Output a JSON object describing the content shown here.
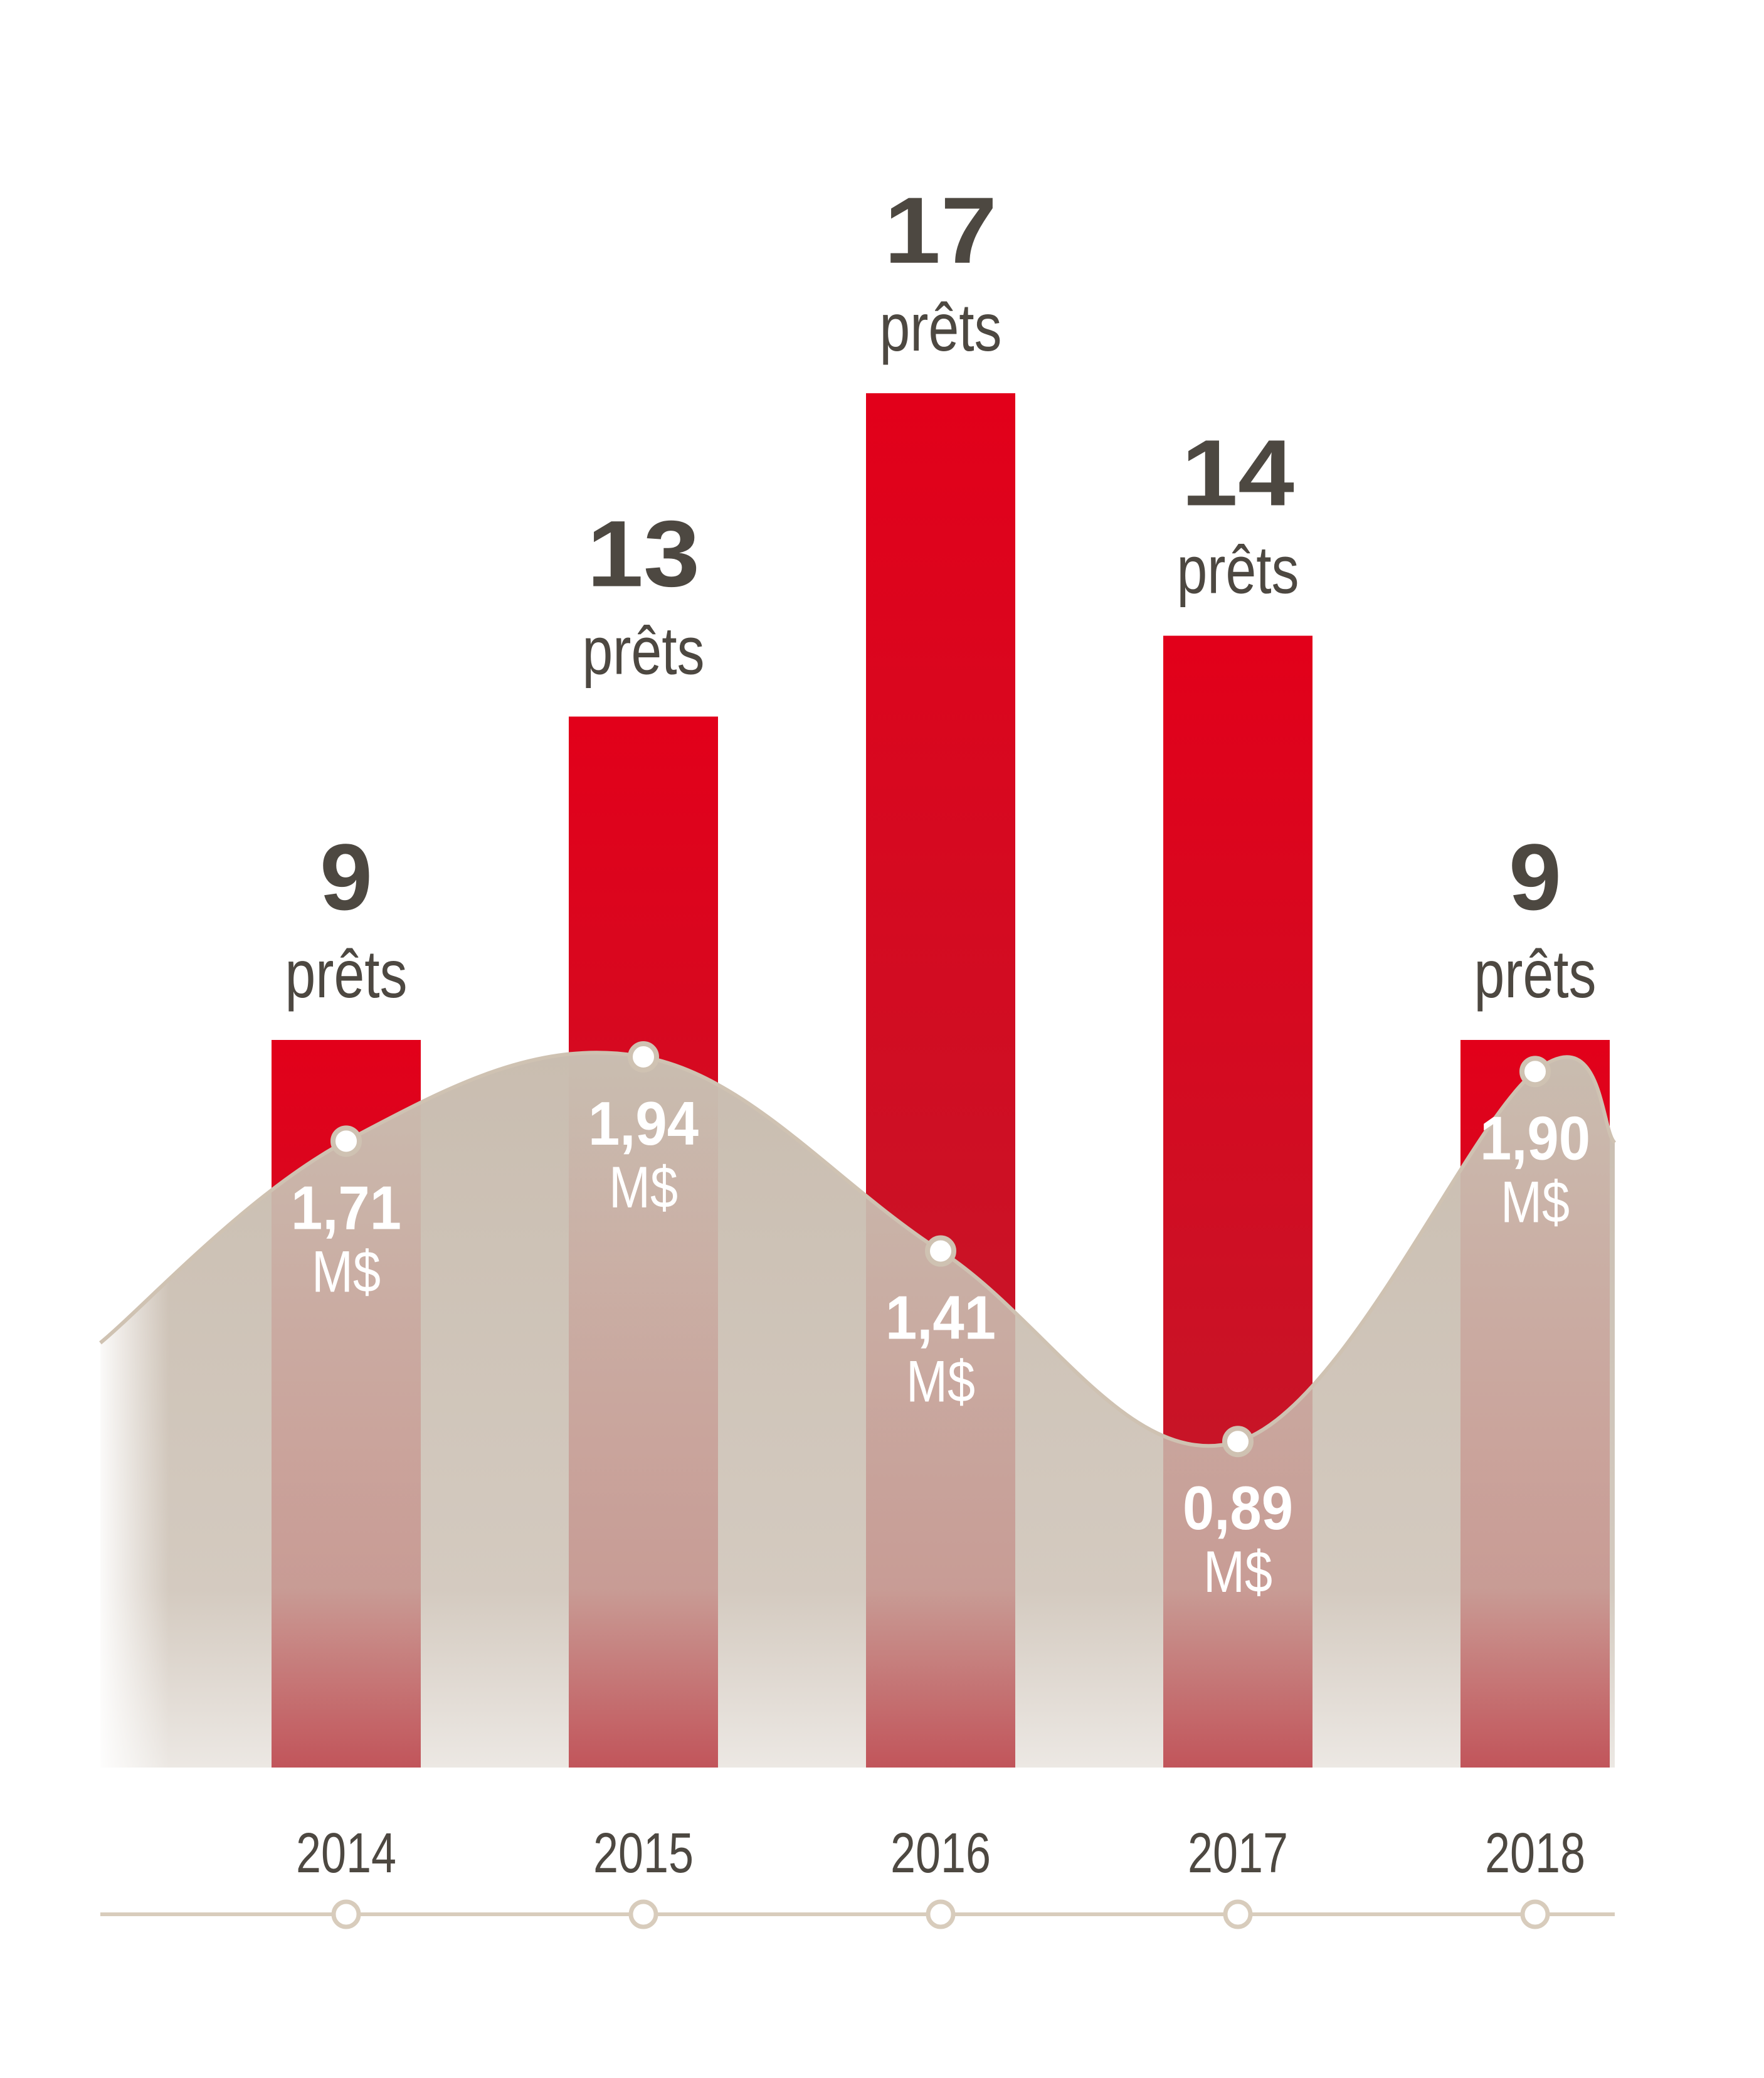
{
  "colors": {
    "bar_top": "#e2001a",
    "bar_bottom": "#bd1c2c",
    "area_fill": "#c9bdb0",
    "curve_line": "#cfc2b2",
    "count_text": "#4d4841",
    "value_text": "#ffffff",
    "axis_line": "#d8ccbc"
  },
  "chart_data": {
    "type": "bar",
    "categories": [
      "2014",
      "2015",
      "2016",
      "2017",
      "2018"
    ],
    "series": [
      {
        "values": [
          9,
          13,
          17,
          14,
          9
        ],
        "label_number": [
          "9",
          "13",
          "17",
          "14",
          "9"
        ],
        "label_unit": "prêts"
      },
      {
        "type": "area",
        "values": [
          1.71,
          1.94,
          1.41,
          0.89,
          1.9
        ],
        "label_number": [
          "1,71",
          "1,94",
          "1,41",
          "0,89",
          "1,90"
        ],
        "label_unit": "M$"
      }
    ]
  }
}
